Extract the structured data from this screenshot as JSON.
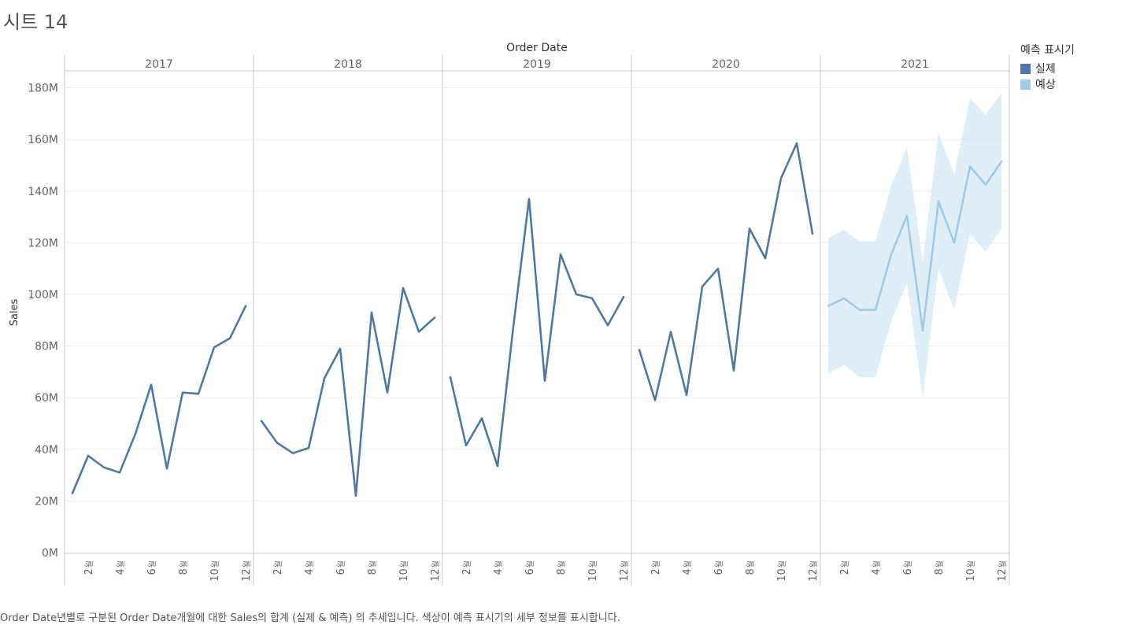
{
  "sheet": {
    "title": "시트 14",
    "caption": "Order Date년별로 구분된 Order Date개월에 대한 Sales의 합계 (실제 & 예측) 의 추세입니다. 색상이 예측 표시기의 세부 정보를 표시합니다."
  },
  "legend": {
    "title": "예측 표시기",
    "items": [
      {
        "label": "실제",
        "color": "#4e79a7"
      },
      {
        "label": "예상",
        "color": "#a0cbe8"
      }
    ]
  },
  "chart_data": {
    "type": "line",
    "title": "Order Date",
    "xlabel": "Order Date",
    "ylabel": "Sales",
    "ylim": [
      0,
      185
    ],
    "y_unit": "M",
    "y_ticks": [
      "0M",
      "20M",
      "40M",
      "60M",
      "80M",
      "100M",
      "120M",
      "140M",
      "160M",
      "180M"
    ],
    "y_tick_values": [
      0,
      20,
      40,
      60,
      80,
      100,
      120,
      140,
      160,
      180
    ],
    "month_tick_label": "월",
    "month_ticks": [
      "2",
      "4",
      "6",
      "8",
      "10",
      "12"
    ],
    "years": [
      "2017",
      "2018",
      "2019",
      "2020",
      "2021"
    ],
    "series": [
      {
        "name": "실제",
        "year": "2017",
        "values": [
          23,
          37.5,
          33,
          31,
          46,
          65,
          32.5,
          62,
          61.5,
          79.5,
          83,
          95.5
        ]
      },
      {
        "name": "실제",
        "year": "2018",
        "values": [
          51,
          42.5,
          38.5,
          40.5,
          67.5,
          79,
          22,
          93,
          62,
          102.5,
          85.5,
          91
        ]
      },
      {
        "name": "실제",
        "year": "2019",
        "values": [
          68,
          41.5,
          52,
          33.5,
          87.5,
          137,
          66.5,
          115.5,
          100,
          98.5,
          88,
          99
        ]
      },
      {
        "name": "실제",
        "year": "2020",
        "values": [
          78.5,
          59,
          85.5,
          61,
          103,
          110,
          70.5,
          125.5,
          114,
          145,
          158.5,
          123.5
        ]
      },
      {
        "name": "예상",
        "year": "2021",
        "values": [
          95.5,
          98.5,
          94,
          94,
          115.5,
          130.5,
          86,
          136,
          120,
          149.5,
          142.5,
          151.5
        ],
        "lower": [
          69.5,
          72.5,
          68,
          68,
          89.5,
          104.5,
          60,
          110,
          94,
          123.5,
          116.5,
          125.5
        ],
        "upper": [
          122,
          125,
          120.5,
          120.5,
          142,
          157,
          112.5,
          162.5,
          146.5,
          176,
          169.5,
          178
        ]
      }
    ]
  }
}
